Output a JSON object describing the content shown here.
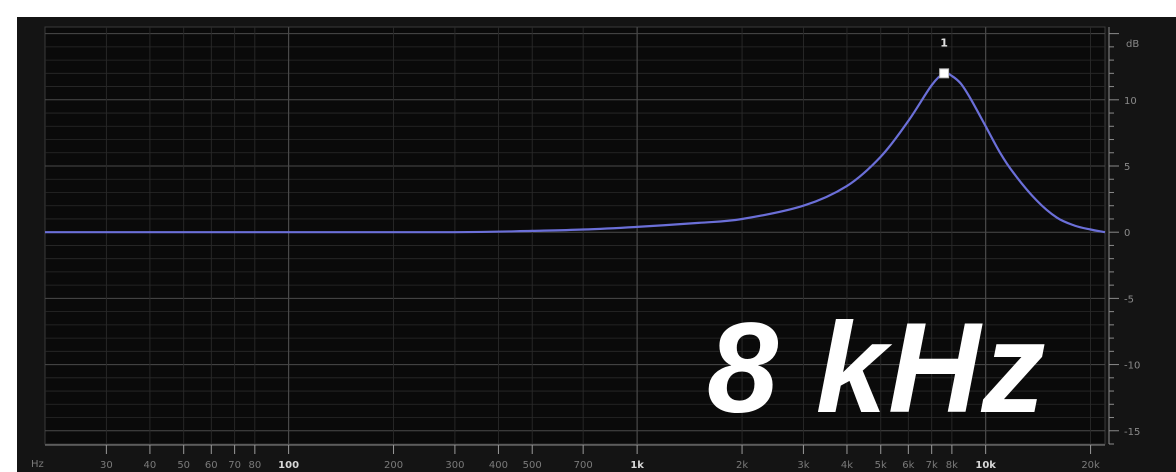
{
  "overlay": {
    "text": "8 kHz"
  },
  "colors": {
    "background": "#141414",
    "plot": "#0a0a0a",
    "grid_major": "#4a4a4a",
    "grid_minor": "#2a2a2a",
    "curve": "#6b6fd8",
    "handle": "#ffffff"
  },
  "chart_data": {
    "type": "line",
    "title": "",
    "xlabel": "Hz",
    "ylabel": "dB",
    "x_scale": "log",
    "xlim": [
      20,
      22000
    ],
    "ylim": [
      -16,
      15.5
    ],
    "x_ticks": [
      {
        "value": 30,
        "label": "30",
        "bold": false
      },
      {
        "value": 40,
        "label": "40",
        "bold": false
      },
      {
        "value": 50,
        "label": "50",
        "bold": false
      },
      {
        "value": 60,
        "label": "60",
        "bold": false
      },
      {
        "value": 70,
        "label": "70",
        "bold": false
      },
      {
        "value": 80,
        "label": "80",
        "bold": false
      },
      {
        "value": 100,
        "label": "100",
        "bold": true
      },
      {
        "value": 200,
        "label": "200",
        "bold": false
      },
      {
        "value": 300,
        "label": "300",
        "bold": false
      },
      {
        "value": 400,
        "label": "400",
        "bold": false
      },
      {
        "value": 500,
        "label": "500",
        "bold": false
      },
      {
        "value": 700,
        "label": "700",
        "bold": false
      },
      {
        "value": 1000,
        "label": "1k",
        "bold": true
      },
      {
        "value": 2000,
        "label": "2k",
        "bold": false
      },
      {
        "value": 3000,
        "label": "3k",
        "bold": false
      },
      {
        "value": 4000,
        "label": "4k",
        "bold": false
      },
      {
        "value": 5000,
        "label": "5k",
        "bold": false
      },
      {
        "value": 6000,
        "label": "6k",
        "bold": false
      },
      {
        "value": 7000,
        "label": "7k",
        "bold": false
      },
      {
        "value": 8000,
        "label": "8k",
        "bold": false
      },
      {
        "value": 10000,
        "label": "10k",
        "bold": true
      },
      {
        "value": 20000,
        "label": "20k",
        "bold": false
      }
    ],
    "y_ticks": [
      {
        "value": 10,
        "label": "10"
      },
      {
        "value": 5,
        "label": "5"
      },
      {
        "value": 0,
        "label": "0"
      },
      {
        "value": -5,
        "label": "-5"
      },
      {
        "value": -10,
        "label": "-10"
      },
      {
        "value": -15,
        "label": "-15"
      }
    ],
    "series": [
      {
        "x": [
          20,
          100,
          300,
          500,
          700,
          1000,
          1500,
          2000,
          3000,
          4000,
          5000,
          6000,
          7000,
          7600,
          8000,
          8500,
          9000,
          10000,
          11000,
          12000,
          14000,
          16000,
          18000,
          20000,
          22000
        ],
        "y": [
          0,
          0,
          0,
          0.1,
          0.2,
          0.4,
          0.7,
          1.0,
          2.0,
          3.5,
          5.7,
          8.4,
          11.1,
          12.0,
          11.8,
          11.2,
          10.2,
          8.0,
          6.0,
          4.5,
          2.4,
          1.1,
          0.5,
          0.2,
          0
        ]
      }
    ],
    "handles": [
      {
        "label": "1",
        "x": 7600,
        "y": 12
      }
    ],
    "grid": true,
    "legend": "none"
  }
}
